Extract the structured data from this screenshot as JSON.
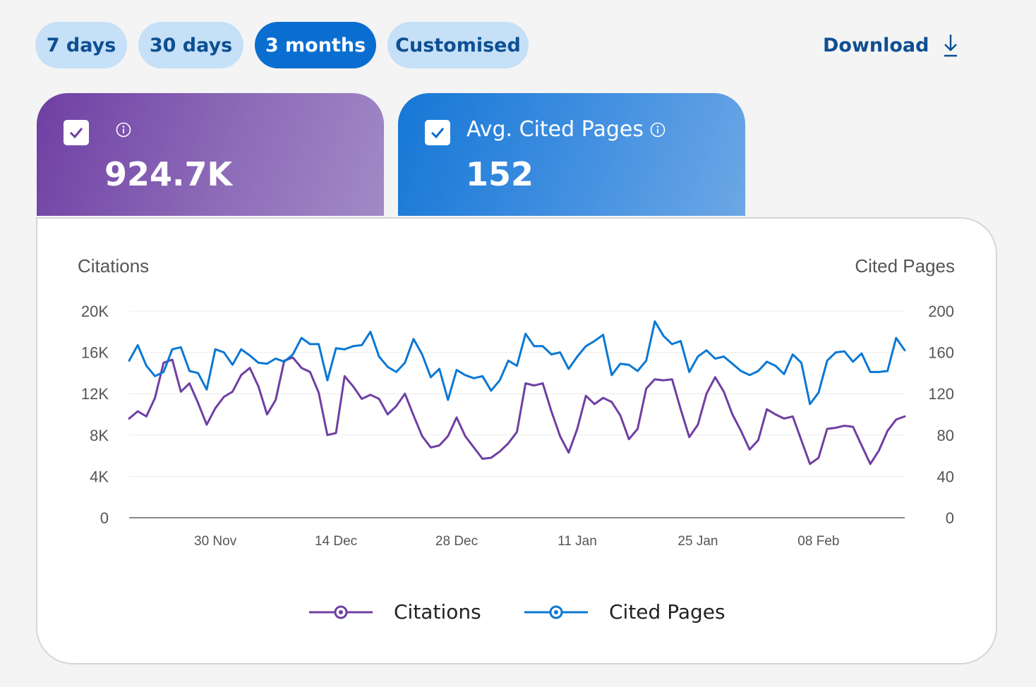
{
  "range_buttons": {
    "seven_days": "7 days",
    "thirty_days": "30 days",
    "three_months": "3 months",
    "customised": "Customised"
  },
  "download_label": "Download",
  "cards": {
    "citations": {
      "label": "",
      "value": "924.7K"
    },
    "cited_pages": {
      "label": "Avg. Cited Pages",
      "value": "152"
    }
  },
  "colors": {
    "citations": "#6f3fa3",
    "cited_pages": "#0a78d4",
    "active_pill": "#0a6ed1",
    "pill": "#c5e0f7"
  },
  "chart_data": {
    "type": "line",
    "left_axis_title": "Citations",
    "right_axis_title": "Cited Pages",
    "y_left_ticks": [
      "20K",
      "16K",
      "12K",
      "8K",
      "4K",
      "0"
    ],
    "y_left_lim": [
      0,
      20000
    ],
    "y_right_ticks": [
      "200",
      "160",
      "120",
      "80",
      "40",
      "0"
    ],
    "y_right_lim": [
      0,
      200
    ],
    "x_tick_labels": [
      "30 Nov",
      "14 Dec",
      "28 Dec",
      "11 Jan",
      "25 Jan",
      "08 Feb"
    ],
    "x_tick_day_index": [
      10,
      24,
      38,
      52,
      66,
      80
    ],
    "day_count": 91,
    "series": [
      {
        "name": "Citations",
        "axis": "left",
        "values": [
          9600,
          10300,
          9800,
          11600,
          15000,
          15300,
          12200,
          13000,
          11100,
          9000,
          10600,
          11700,
          12200,
          13800,
          14500,
          12700,
          10000,
          11400,
          15200,
          15500,
          14500,
          14100,
          12100,
          8000,
          8200,
          13700,
          12700,
          11500,
          11900,
          11500,
          10000,
          10800,
          12000,
          9900,
          7900,
          6800,
          7000,
          7900,
          9700,
          7900,
          6800,
          5700,
          5800,
          6400,
          7200,
          8300,
          13000,
          12800,
          13000,
          10300,
          7900,
          6300,
          8600,
          11800,
          11000,
          11600,
          11200,
          9900,
          7600,
          8600,
          12500,
          13400,
          13300,
          13400,
          10500,
          7800,
          9000,
          12000,
          13600,
          12200,
          10000,
          8400,
          6600,
          7500,
          10500,
          10000,
          9600,
          9800,
          7500,
          5200,
          5800,
          8600,
          8700,
          8900,
          8800,
          7000,
          5200,
          6500,
          8400,
          9500,
          9800
        ]
      },
      {
        "name": "Cited Pages",
        "axis": "right",
        "values": [
          152,
          167,
          147,
          137,
          141,
          163,
          165,
          142,
          140,
          124,
          163,
          160,
          148,
          163,
          157,
          150,
          149,
          154,
          151,
          158,
          174,
          168,
          168,
          133,
          164,
          163,
          166,
          167,
          180,
          156,
          146,
          141,
          150,
          173,
          158,
          136,
          144,
          114,
          143,
          138,
          135,
          137,
          123,
          133,
          152,
          147,
          178,
          166,
          166,
          158,
          160,
          144,
          156,
          166,
          171,
          177,
          138,
          149,
          148,
          142,
          152,
          190,
          176,
          168,
          171,
          141,
          156,
          162,
          154,
          156,
          149,
          142,
          138,
          142,
          151,
          147,
          139,
          158,
          150,
          110,
          121,
          152,
          160,
          161,
          151,
          159,
          141,
          141,
          142,
          174,
          162
        ]
      }
    ],
    "grid": true,
    "legend": "bottom-center"
  }
}
